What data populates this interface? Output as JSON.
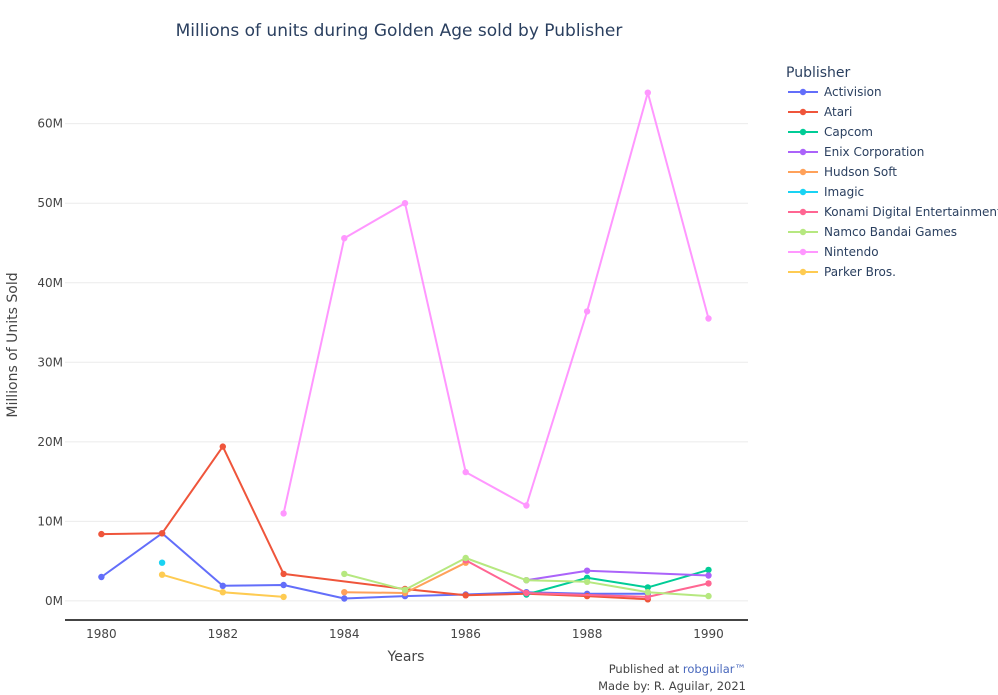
{
  "chart_data": {
    "type": "line",
    "title": "Millions of units during Golden Age sold by Publisher",
    "xlabel": "Years",
    "ylabel": "Millions of Units Sold",
    "xlim": [
      1979.4,
      1990.65
    ],
    "ylim": [
      -2.4,
      67
    ],
    "x_ticks": [
      1980,
      1982,
      1984,
      1986,
      1988,
      1990
    ],
    "x_tick_labels": [
      "1980",
      "1982",
      "1984",
      "1986",
      "1988",
      "1990"
    ],
    "y_ticks": [
      0,
      10,
      20,
      30,
      40,
      50,
      60
    ],
    "y_tick_labels": [
      "0M",
      "10M",
      "20M",
      "30M",
      "40M",
      "50M",
      "60M"
    ],
    "grid": true,
    "legend": {
      "title": "Publisher",
      "position": "right"
    },
    "series": [
      {
        "name": "Activision",
        "color": "#636efa",
        "points": [
          [
            1980,
            3.0
          ],
          [
            1981,
            8.5
          ],
          [
            1982,
            1.9
          ],
          [
            1983,
            2.0
          ],
          [
            1984,
            0.3
          ],
          [
            1985,
            0.6
          ],
          [
            1986,
            0.8
          ],
          [
            1987,
            1.1
          ],
          [
            1988,
            0.9
          ],
          [
            1989,
            0.9
          ]
        ]
      },
      {
        "name": "Atari",
        "color": "#ef553b",
        "points": [
          [
            1980,
            8.4
          ],
          [
            1981,
            8.5
          ],
          [
            1982,
            19.4
          ],
          [
            1983,
            3.4
          ],
          [
            1985,
            1.5
          ],
          [
            1986,
            0.7
          ],
          [
            1987,
            0.9
          ],
          [
            1988,
            0.6
          ],
          [
            1989,
            0.2
          ]
        ]
      },
      {
        "name": "Capcom",
        "color": "#00cc96",
        "points": [
          [
            1987,
            0.8
          ],
          [
            1988,
            2.9
          ],
          [
            1989,
            1.7
          ],
          [
            1990,
            3.9
          ]
        ]
      },
      {
        "name": "Enix Corporation",
        "color": "#ab63fa",
        "points": [
          [
            1987,
            2.6
          ],
          [
            1988,
            3.8
          ],
          [
            1990,
            3.2
          ]
        ]
      },
      {
        "name": "Hudson Soft",
        "color": "#ffa15a",
        "points": [
          [
            1984,
            1.1
          ],
          [
            1985,
            1.0
          ],
          [
            1986,
            4.8
          ]
        ]
      },
      {
        "name": "Imagic",
        "color": "#19d3f3",
        "points": [
          [
            1981,
            4.8
          ]
        ]
      },
      {
        "name": "Konami Digital Entertainment",
        "color": "#ff6692",
        "points": [
          [
            1986,
            5.1
          ],
          [
            1987,
            1.0
          ],
          [
            1989,
            0.5
          ],
          [
            1990,
            2.2
          ]
        ]
      },
      {
        "name": "Namco Bandai Games",
        "color": "#b6e880",
        "points": [
          [
            1984,
            3.4
          ],
          [
            1985,
            1.4
          ],
          [
            1986,
            5.4
          ],
          [
            1987,
            2.6
          ],
          [
            1988,
            2.4
          ],
          [
            1989,
            1.1
          ],
          [
            1990,
            0.6
          ]
        ]
      },
      {
        "name": "Nintendo",
        "color": "#ff97ff",
        "points": [
          [
            1983,
            11.0
          ],
          [
            1984,
            45.6
          ],
          [
            1985,
            50.0
          ],
          [
            1986,
            16.2
          ],
          [
            1987,
            12.0
          ],
          [
            1988,
            36.4
          ],
          [
            1989,
            63.9
          ],
          [
            1990,
            35.5
          ]
        ]
      },
      {
        "name": "Parker Bros.",
        "color": "#fecb52",
        "points": [
          [
            1981,
            3.3
          ],
          [
            1982,
            1.1
          ],
          [
            1983,
            0.5
          ]
        ]
      }
    ]
  },
  "footer": {
    "published_prefix": "Published at ",
    "published_link": "robguilar™",
    "made_by": "Made by: R. Aguilar, 2021"
  }
}
